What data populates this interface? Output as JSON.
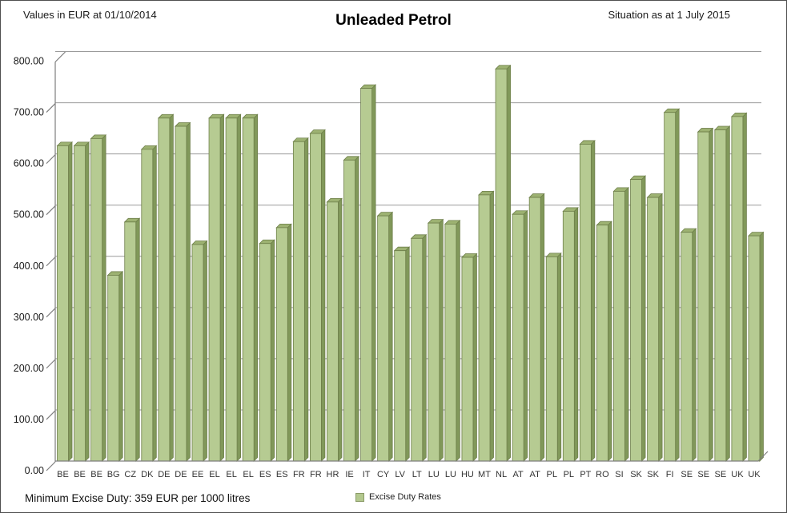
{
  "header": {
    "left_note": "Values in EUR at 01/10/2014",
    "title": "Unleaded Petrol",
    "right_note": "Situation as at 1 July 2015"
  },
  "footer": {
    "min_duty_note": "Minimum Excise Duty: 359 EUR per 1000 litres"
  },
  "legend": {
    "label": "Excise Duty Rates"
  },
  "chart_data": {
    "type": "bar",
    "title": "Unleaded Petrol",
    "subtitle_left": "Values in EUR at 01/10/2014",
    "subtitle_right": "Situation as at 1 July 2015",
    "annotation": "Minimum Excise Duty: 359 EUR per 1000 litres",
    "categories": [
      "BE",
      "BE",
      "BE",
      "BG",
      "CZ",
      "DK",
      "DE",
      "DE",
      "EE",
      "EL",
      "EL",
      "EL",
      "ES",
      "ES",
      "FR",
      "FR",
      "HR",
      "IE",
      "IT",
      "CY",
      "LV",
      "LT",
      "LU",
      "LU",
      "HU",
      "MT",
      "NL",
      "AT",
      "AT",
      "PL",
      "PL",
      "PT",
      "RO",
      "SI",
      "SK",
      "SK",
      "FI",
      "SE",
      "SE",
      "SE",
      "UK",
      "UK"
    ],
    "series": [
      {
        "name": "Excise Duty Rates",
        "values": [
          616,
          616,
          630,
          363,
          467,
          609,
          670,
          654,
          423,
          670,
          670,
          670,
          425,
          456,
          624,
          640,
          506,
          588,
          728,
          479,
          411,
          435,
          465,
          463,
          398,
          520,
          766,
          482,
          515,
          399,
          488,
          619,
          461,
          527,
          550,
          515,
          681,
          447,
          643,
          647,
          673,
          440
        ]
      }
    ],
    "ylim": [
      0,
      800
    ],
    "ytick_interval": 100,
    "ytick_labels": [
      "0.00",
      "100.00",
      "200.00",
      "300.00",
      "400.00",
      "500.00",
      "600.00",
      "700.00",
      "800.00"
    ],
    "grid": true,
    "legend_position": "bottom",
    "colors": {
      "bar_front": "#b6cb92",
      "bar_side": "#81985a",
      "bar_top": "#9db272",
      "bar_outline": "#6e7f4a",
      "gridline": "#9a9a9a",
      "axis": "#7f7f7f",
      "legend_swatch": "#b3c88e"
    }
  }
}
